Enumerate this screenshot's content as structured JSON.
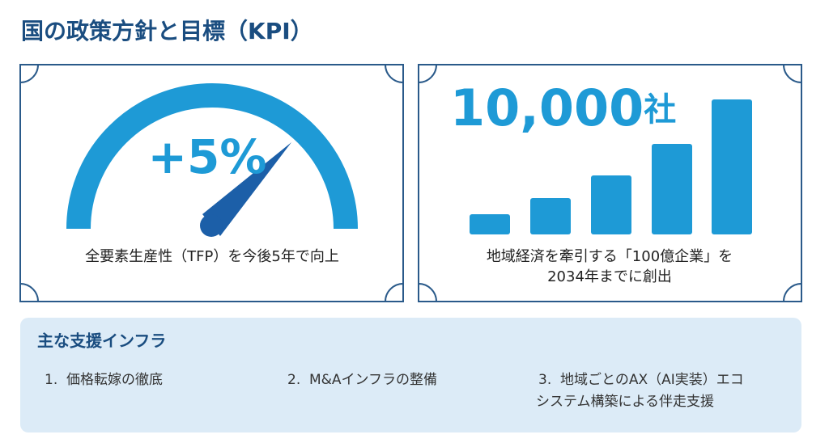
{
  "header": {
    "title": "国の政策方針と目標（KPI）"
  },
  "cards": [
    {
      "headline": "+5%",
      "caption_lines": [
        "全要素生産性（TFP）を今後5年で向上"
      ]
    },
    {
      "headline": "10,000",
      "unit": "社",
      "caption_lines": [
        "地域経済を牽引する「100億企業」を",
        "2034年までに創出"
      ]
    }
  ],
  "infrastructure": {
    "title": "主な支援インフラ",
    "items": [
      {
        "number": "1.",
        "lines": [
          "価格転嫁の徹底"
        ]
      },
      {
        "number": "2.",
        "lines": [
          "M&Aインフラの整備"
        ]
      },
      {
        "number": "3.",
        "lines": [
          "地域ごとのAX（AI実装）エコ",
          "システム構築による伴走支援"
        ]
      }
    ]
  }
}
